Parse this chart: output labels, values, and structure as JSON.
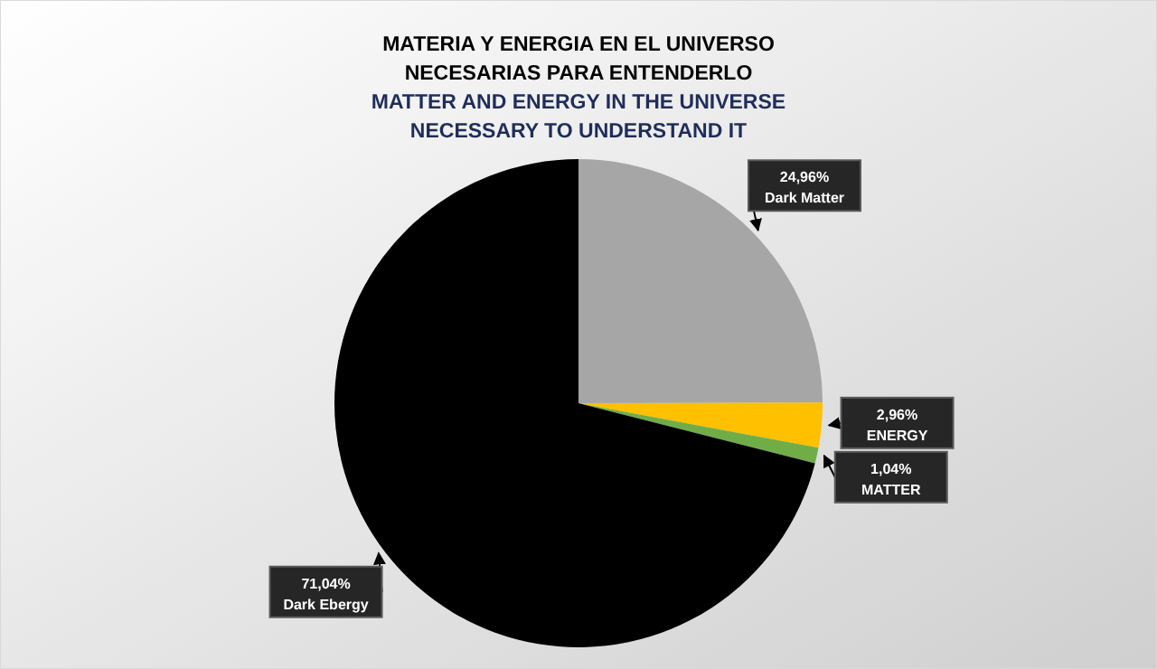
{
  "chart_data": {
    "type": "pie",
    "title": "MATERIA Y ENERGIA EN EL UNIVERSO\nNECESARIAS PARA ENTENDERLO",
    "subtitle": "MATTER AND ENERGY IN THE UNIVERSE\nNECESSARY TO UNDERSTAND IT",
    "categories": [
      "Dark Matter",
      "ENERGY",
      "MATTER",
      "Dark Ebergy"
    ],
    "values": [
      24.96,
      2.96,
      1.04,
      71.04
    ],
    "colors": [
      "#a6a6a6",
      "#ffc000",
      "#70ad47",
      "#000000"
    ],
    "value_labels": [
      "24,96%",
      "2,96%",
      "1,04%",
      "71,04%"
    ]
  }
}
